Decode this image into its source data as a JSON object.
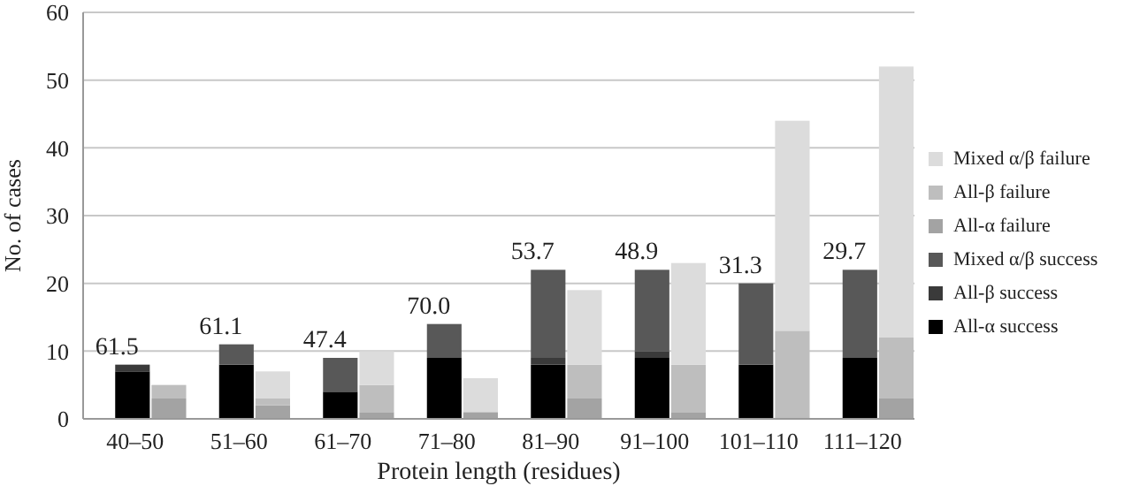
{
  "chart_data": {
    "type": "bar",
    "xlabel": "Protein length (residues)",
    "ylabel": "No. of cases",
    "categories": [
      "40–50",
      "51–60",
      "61–70",
      "71–80",
      "81–90",
      "91–100",
      "101–110",
      "111–120"
    ],
    "series": [
      {
        "name": "All-α success",
        "color": "#000000",
        "values": [
          7,
          8,
          4,
          9,
          8,
          9,
          8,
          9
        ],
        "base": [
          0,
          0,
          0,
          0,
          0,
          0,
          0,
          0
        ]
      },
      {
        "name": "All-β success",
        "color": "#3a3a3a",
        "values": [
          1,
          0,
          0,
          0,
          1,
          1,
          0,
          0
        ],
        "base": [
          7,
          null,
          null,
          null,
          8,
          9,
          null,
          null
        ]
      },
      {
        "name": "Mixed α/β success",
        "color": "#585858",
        "values": [
          0,
          3,
          5,
          5,
          13,
          12,
          12,
          13
        ],
        "base": [
          null,
          8,
          4,
          9,
          9,
          10,
          8,
          9
        ]
      },
      {
        "name": "All-α failure",
        "color": "#a3a3a3",
        "values": [
          3,
          2,
          1,
          1,
          3,
          1,
          0,
          3
        ],
        "base": [
          0,
          0,
          0,
          0,
          0,
          0,
          null,
          0
        ]
      },
      {
        "name": "All-β failure",
        "color": "#bebebe",
        "values": [
          2,
          1,
          4,
          0,
          5,
          7,
          13,
          9
        ],
        "base": [
          3,
          2,
          1,
          null,
          3,
          1,
          0,
          3
        ]
      },
      {
        "name": "Mixed α/β failure",
        "color": "#dcdcdc",
        "values": [
          0,
          4,
          5,
          5,
          11,
          15,
          31,
          40
        ],
        "base": [
          null,
          3,
          5,
          1,
          8,
          8,
          13,
          12
        ]
      }
    ],
    "annotations": [
      {
        "text": "61.5",
        "x": "40–50",
        "y": 8
      },
      {
        "text": "61.1",
        "x": "51–60",
        "y": 11
      },
      {
        "text": "47.4",
        "x": "61–70",
        "y": 9
      },
      {
        "text": "70.0",
        "x": "71–80",
        "y": 14
      },
      {
        "text": "53.7",
        "x": "81–90",
        "y": 22
      },
      {
        "text": "48.9",
        "x": "91–100",
        "y": 22
      },
      {
        "text": "31.3",
        "x": "101–110",
        "y": 20
      },
      {
        "text": "29.7",
        "x": "111–120",
        "y": 22
      }
    ],
    "ylim": [
      0,
      60
    ],
    "yticks": [
      0,
      10,
      20,
      30,
      40,
      50,
      60
    ],
    "grid": "y",
    "legend": "right"
  }
}
